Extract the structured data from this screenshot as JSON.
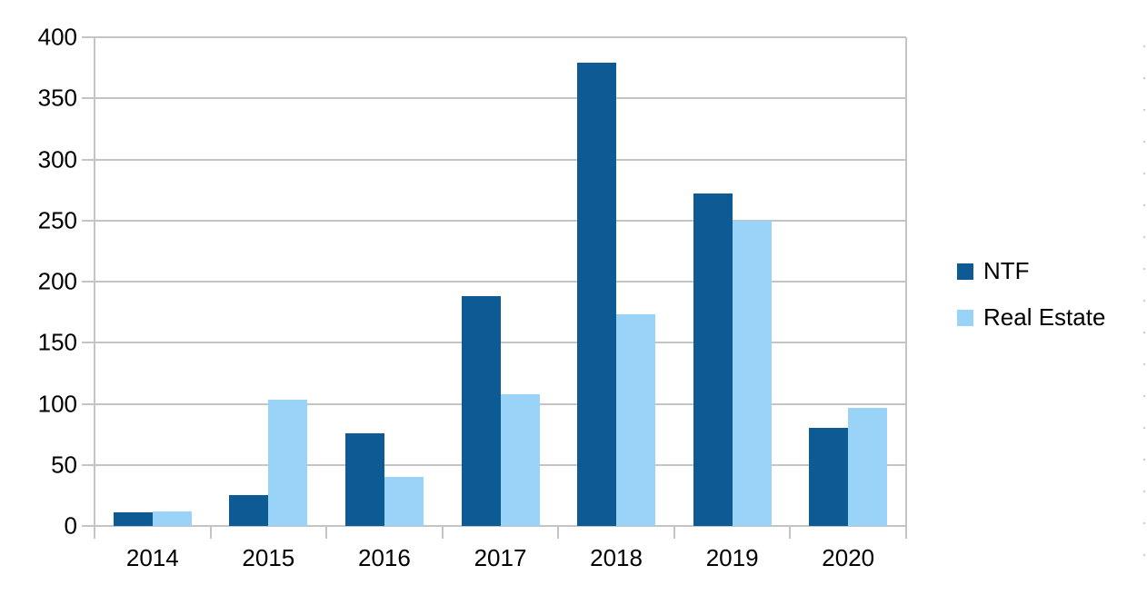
{
  "chart_data": {
    "type": "bar",
    "title": "",
    "xlabel": "",
    "ylabel": "",
    "categories": [
      "2014",
      "2015",
      "2016",
      "2017",
      "2018",
      "2019",
      "2020"
    ],
    "series": [
      {
        "name": "NTF",
        "color": "#0e5a94",
        "values": [
          11,
          25,
          76,
          188,
          379,
          272,
          80
        ]
      },
      {
        "name": "Real Estate",
        "color": "#9ad3f8",
        "values": [
          12,
          103,
          40,
          108,
          173,
          250,
          97
        ]
      }
    ],
    "y_ticks": [
      0,
      50,
      100,
      150,
      200,
      250,
      300,
      350,
      400
    ],
    "ylim": [
      0,
      400
    ],
    "grid": true,
    "legend_position": "right"
  },
  "colors": {
    "background": "#ffffff",
    "gridline": "#c4c4c4",
    "axis": "#c4c4c4",
    "text": "#000000"
  }
}
